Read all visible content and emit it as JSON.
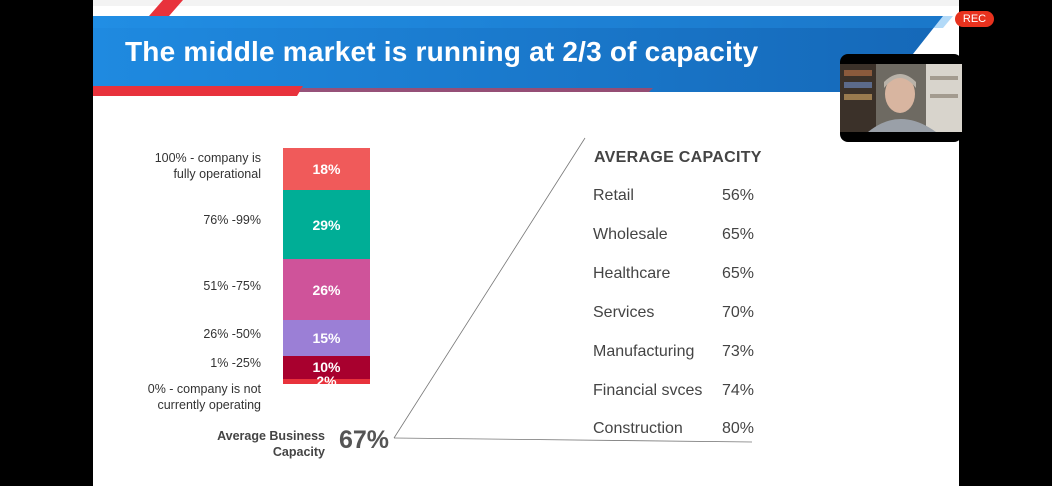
{
  "slide": {
    "title": "The middle market is running at 2/3 of capacity",
    "colors": {
      "banner_blue": "#1a7fd4",
      "banner_red": "#e8323c"
    }
  },
  "recording": {
    "badge": "REC"
  },
  "chart_data": {
    "type": "bar",
    "stacked": true,
    "categories": [
      "100% - company is fully operational",
      "76% -99%",
      "51% -75%",
      "26% -50%",
      "1% -25%",
      "0% - company is not currently operating"
    ],
    "values": [
      18,
      29,
      26,
      15,
      10,
      2
    ],
    "value_labels": [
      "18%",
      "29%",
      "26%",
      "15%",
      "10%",
      "2%"
    ],
    "colors": [
      "#f05a5a",
      "#00ae96",
      "#cf539a",
      "#9b7fd6",
      "#a8002e",
      "#e8323c"
    ]
  },
  "labels": {
    "full": [
      "100% - company is",
      "fully operational"
    ],
    "r76": "76% -99%",
    "r51": "51% -75%",
    "r26": "26% -50%",
    "r1": "1% -25%",
    "zero": [
      "0% - company is not",
      "currently operating"
    ]
  },
  "average": {
    "label": [
      "Average Business",
      "Capacity"
    ],
    "value": "67%"
  },
  "capacity": {
    "title": "AVERAGE CAPACITY",
    "rows": [
      {
        "name": "Retail",
        "value": "56%"
      },
      {
        "name": "Wholesale",
        "value": "65%"
      },
      {
        "name": "Healthcare",
        "value": "65%"
      },
      {
        "name": "Services",
        "value": "70%"
      },
      {
        "name": "Manufacturing",
        "value": "73%"
      },
      {
        "name": "Financial svces",
        "value": "74%"
      },
      {
        "name": "Construction",
        "value": "80%"
      }
    ]
  }
}
